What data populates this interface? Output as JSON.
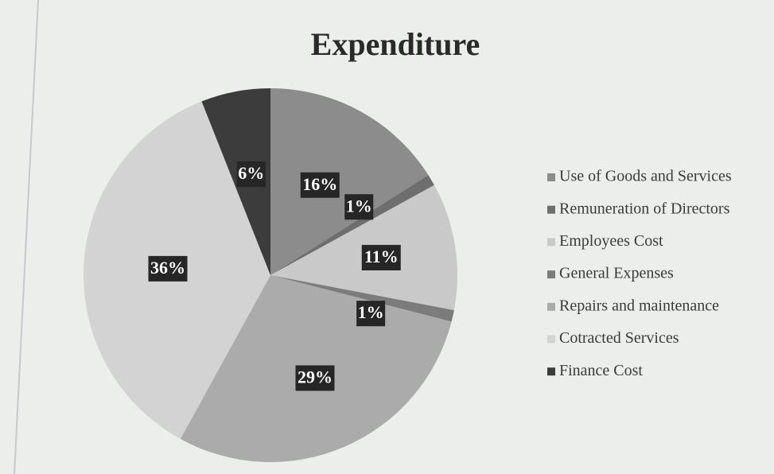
{
  "chart_data": {
    "type": "pie",
    "title": "Expenditure",
    "categories": [
      "Use of Goods and Services",
      "Remuneration of Directors",
      "Employees Cost",
      "General Expenses",
      "Repairs and maintenance",
      "Cotracted Services",
      "Finance Cost"
    ],
    "values": [
      16,
      1,
      11,
      1,
      29,
      36,
      6
    ],
    "value_labels": [
      "16%",
      "1%",
      "11%",
      "1%",
      "29%",
      "36%",
      "6%"
    ],
    "colors": [
      "#8c8c8c",
      "#6e6e6e",
      "#c9c9c9",
      "#7c7c7c",
      "#ababab",
      "#d3d3d3",
      "#3c3c3c"
    ],
    "legend": "right"
  }
}
